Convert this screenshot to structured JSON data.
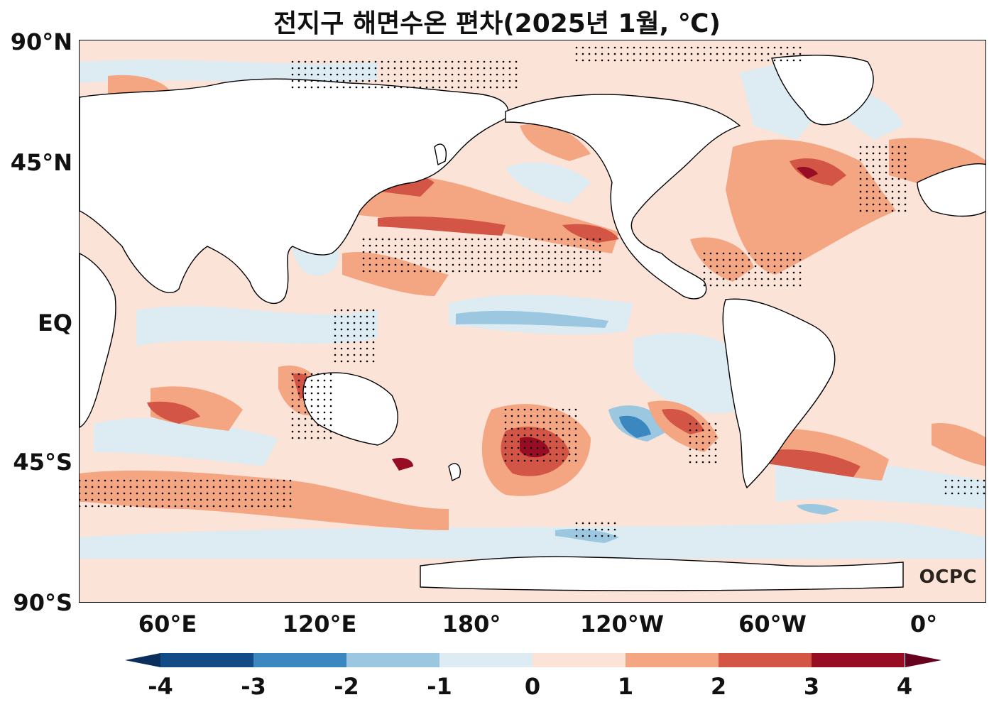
{
  "title": "전지구 해면수온 편차(2025년 1월, ℃)",
  "lat_ticks": [
    "90°N",
    "45°N",
    "EQ",
    "45°S",
    "90°S"
  ],
  "lon_ticks": [
    "60°E",
    "120°E",
    "180°",
    "120°W",
    "60°W",
    "0°"
  ],
  "logo": "OCPC",
  "colorbar": {
    "ticks": [
      "-4",
      "-3",
      "-2",
      "-1",
      "0",
      "1",
      "2",
      "3",
      "4"
    ],
    "colors": [
      "#134b87",
      "#3a88bf",
      "#9bc7e0",
      "#ddebf3",
      "#fbe3d8",
      "#f4a582",
      "#d35545",
      "#960d24"
    ],
    "under_color": "#0b2f5c",
    "over_color": "#67001f"
  },
  "palette": {
    "land": "#ffffff",
    "ocean_default": "#fbe3d8",
    "coast": "#000000"
  }
}
